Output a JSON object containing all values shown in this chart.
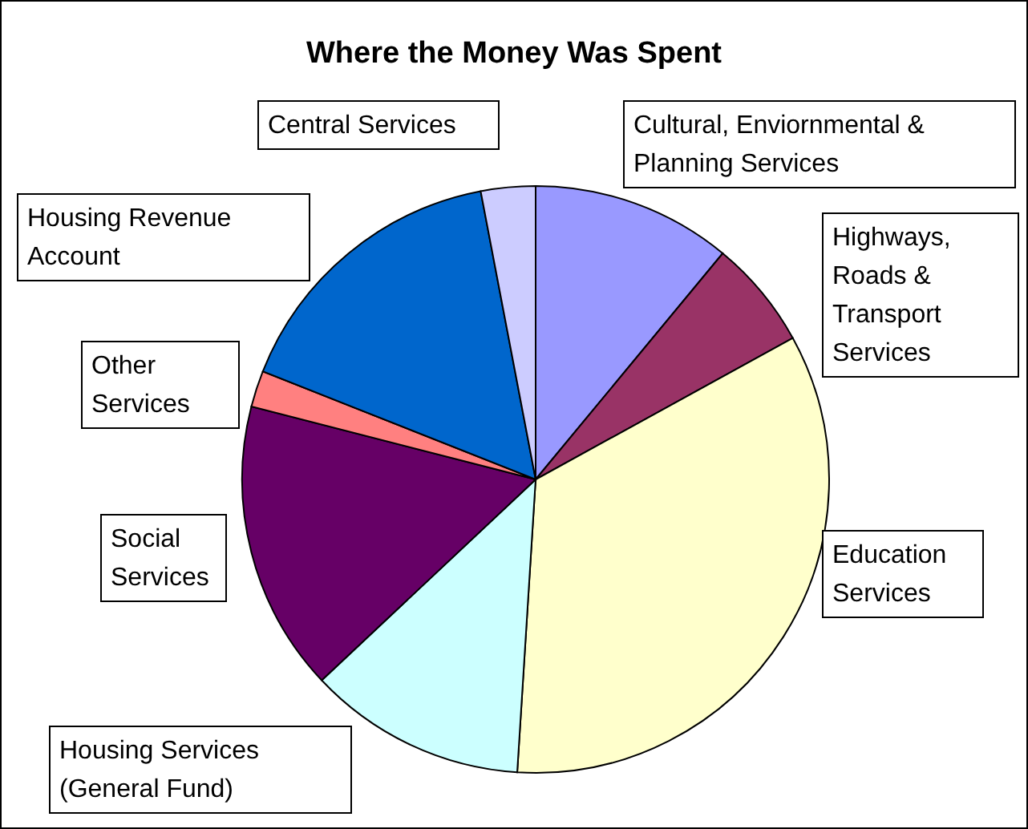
{
  "chart_data": {
    "type": "pie",
    "title": "Where the Money Was Spent",
    "categories": [
      "Cultural, Enviornmental & Planning Services",
      "Highways, Roads & Transport Services",
      "Education Services",
      "Housing Services (General Fund)",
      "Social Services",
      "Other Services",
      "Housing Revenue Account",
      "Central Services"
    ],
    "values": [
      11,
      6,
      34,
      12,
      16,
      2,
      16,
      3
    ],
    "colors": [
      "#9999ff",
      "#993366",
      "#ffffcc",
      "#ccffff",
      "#660066",
      "#ff8080",
      "#0066cc",
      "#ccccff"
    ],
    "legend": false
  }
}
